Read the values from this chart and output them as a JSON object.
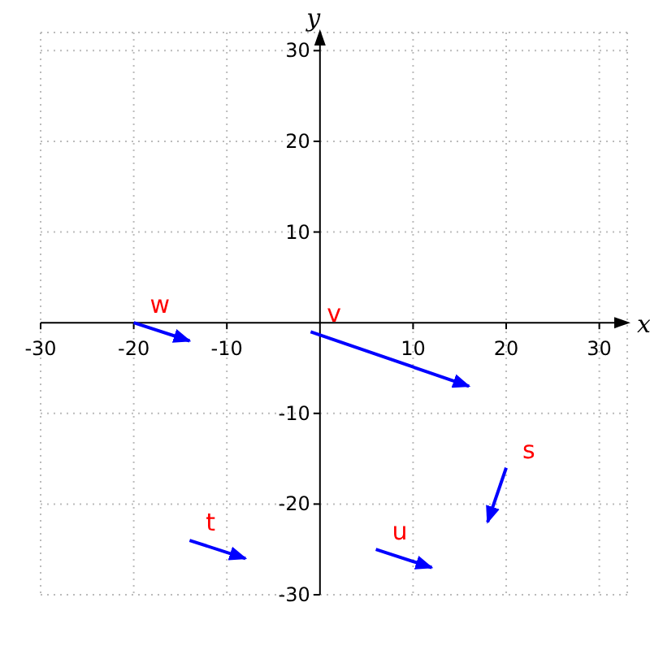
{
  "chart_data": {
    "type": "line",
    "xlabel": "x",
    "ylabel": "y",
    "xlim": [
      -30,
      33
    ],
    "ylim": [
      -30,
      32
    ],
    "xticks": [
      -30,
      -20,
      -10,
      10,
      20,
      30
    ],
    "yticks": [
      -30,
      -20,
      -10,
      10,
      20,
      30
    ],
    "grid": true,
    "line_style": "solid",
    "series": [
      {
        "name": "w",
        "color": "#0000ff",
        "x": [
          -20,
          -14
        ],
        "values": [
          0,
          -2
        ]
      },
      {
        "name": "v",
        "color": "#0000ff",
        "x": [
          -1,
          16
        ],
        "values": [
          -1,
          -7
        ]
      },
      {
        "name": "t",
        "color": "#0000ff",
        "x": [
          -14,
          -8
        ],
        "values": [
          -24,
          -26
        ]
      },
      {
        "name": "u",
        "color": "#0000ff",
        "x": [
          6,
          12
        ],
        "values": [
          -25,
          -27
        ]
      },
      {
        "name": "s",
        "color": "#0000ff",
        "x": [
          20,
          18
        ],
        "values": [
          -16,
          -22
        ]
      }
    ]
  }
}
